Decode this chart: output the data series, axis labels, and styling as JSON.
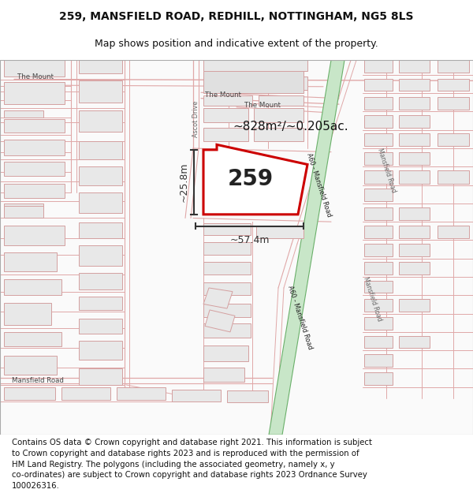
{
  "title_line1": "259, MANSFIELD ROAD, REDHILL, NOTTINGHAM, NG5 8LS",
  "title_line2": "Map shows position and indicative extent of the property.",
  "footer": "Contains OS data © Crown copyright and database right 2021. This information is subject to Crown copyright and database rights 2023 and is reproduced with the permission of HM Land Registry. The polygons (including the associated geometry, namely x, y co-ordinates) are subject to Crown copyright and database rights 2023 Ordnance Survey 100026316.",
  "map_bg": "#faf8f8",
  "road_green_fill": "#c8e6c8",
  "road_green_edge": "#6ab06a",
  "building_fill": "#e8e8e8",
  "building_edge": "#d4a0a0",
  "road_color": "#e0a8a8",
  "property_fill": "#ffffff",
  "property_edge": "#cc0000",
  "property_edge_width": 2.2,
  "property_label": "259",
  "area_label": "~828m²/~0.205ac.",
  "width_label": "~57.4m",
  "height_label": "~25.8m",
  "title_fontsize": 10,
  "footer_fontsize": 7.3,
  "dim_color": "#333333",
  "label_color": "#444444",
  "text_color": "#333333"
}
